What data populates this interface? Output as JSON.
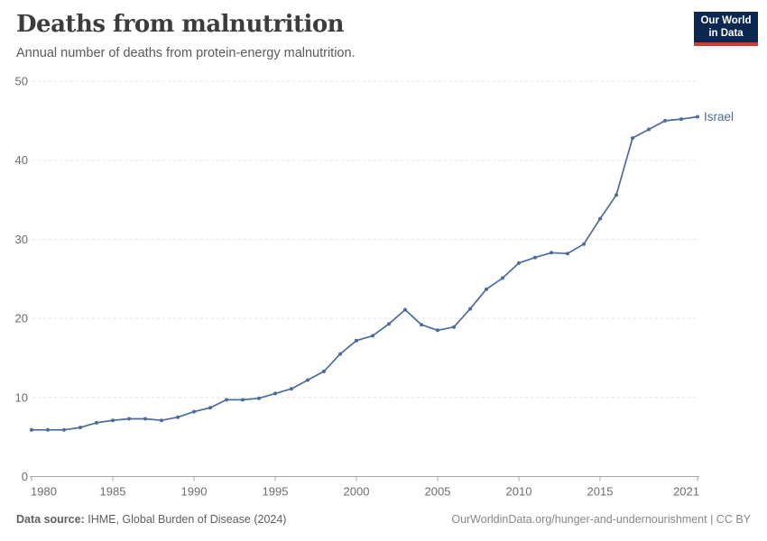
{
  "header": {
    "title": "Deaths from malnutrition",
    "subtitle": "Annual number of deaths from protein-energy malnutrition."
  },
  "logo": {
    "line1": "Our World",
    "line2": "in Data",
    "bg_color": "#0C2850",
    "bar_color": "#D13A2C"
  },
  "chart_data": {
    "type": "line",
    "title": "Deaths from malnutrition",
    "subtitle": "Annual number of deaths from protein-energy malnutrition.",
    "x": [
      1980,
      1981,
      1982,
      1983,
      1984,
      1985,
      1986,
      1987,
      1988,
      1989,
      1990,
      1991,
      1992,
      1993,
      1994,
      1995,
      1996,
      1997,
      1998,
      1999,
      2000,
      2001,
      2002,
      2003,
      2004,
      2005,
      2006,
      2007,
      2008,
      2009,
      2010,
      2011,
      2012,
      2013,
      2014,
      2015,
      2016,
      2017,
      2018,
      2019,
      2020,
      2021
    ],
    "series": [
      {
        "name": "Israel",
        "color": "#4C6A9C",
        "values": [
          5.9,
          5.9,
          5.9,
          6.2,
          6.8,
          7.1,
          7.3,
          7.3,
          7.1,
          7.5,
          8.2,
          8.7,
          9.7,
          9.7,
          9.9,
          10.5,
          11.1,
          12.2,
          13.3,
          15.5,
          17.2,
          17.8,
          19.3,
          21.1,
          19.2,
          18.5,
          18.9,
          21.2,
          23.7,
          25.1,
          27.0,
          27.7,
          28.3,
          28.2,
          29.4,
          32.6,
          35.6,
          42.8,
          43.9,
          45.0,
          45.2,
          45.5
        ]
      }
    ],
    "xlabel": "",
    "ylabel": "",
    "xlim": [
      1980,
      2021
    ],
    "ylim": [
      0,
      50
    ],
    "yticks": [
      0,
      10,
      20,
      30,
      40,
      50
    ],
    "xticks": [
      1980,
      1985,
      1990,
      1995,
      2000,
      2005,
      2010,
      2015,
      2021
    ],
    "grid": "horizontal-dashed",
    "legend": "end-of-line-label"
  },
  "footer": {
    "source_label": "Data source:",
    "source_value": "IHME, Global Burden of Disease (2024)",
    "right": "OurWorldinData.org/hunger-and-undernourishment | CC BY"
  },
  "colors": {
    "line": "#4C6A9C",
    "grid": "#E2E2E2",
    "axis": "#A5A5A5",
    "tick_label": "#6D6D6D",
    "title": "#3D3D3D",
    "subtitle": "#5A5A5A",
    "footer_left": "#5F5F5F",
    "footer_right": "#888888"
  }
}
